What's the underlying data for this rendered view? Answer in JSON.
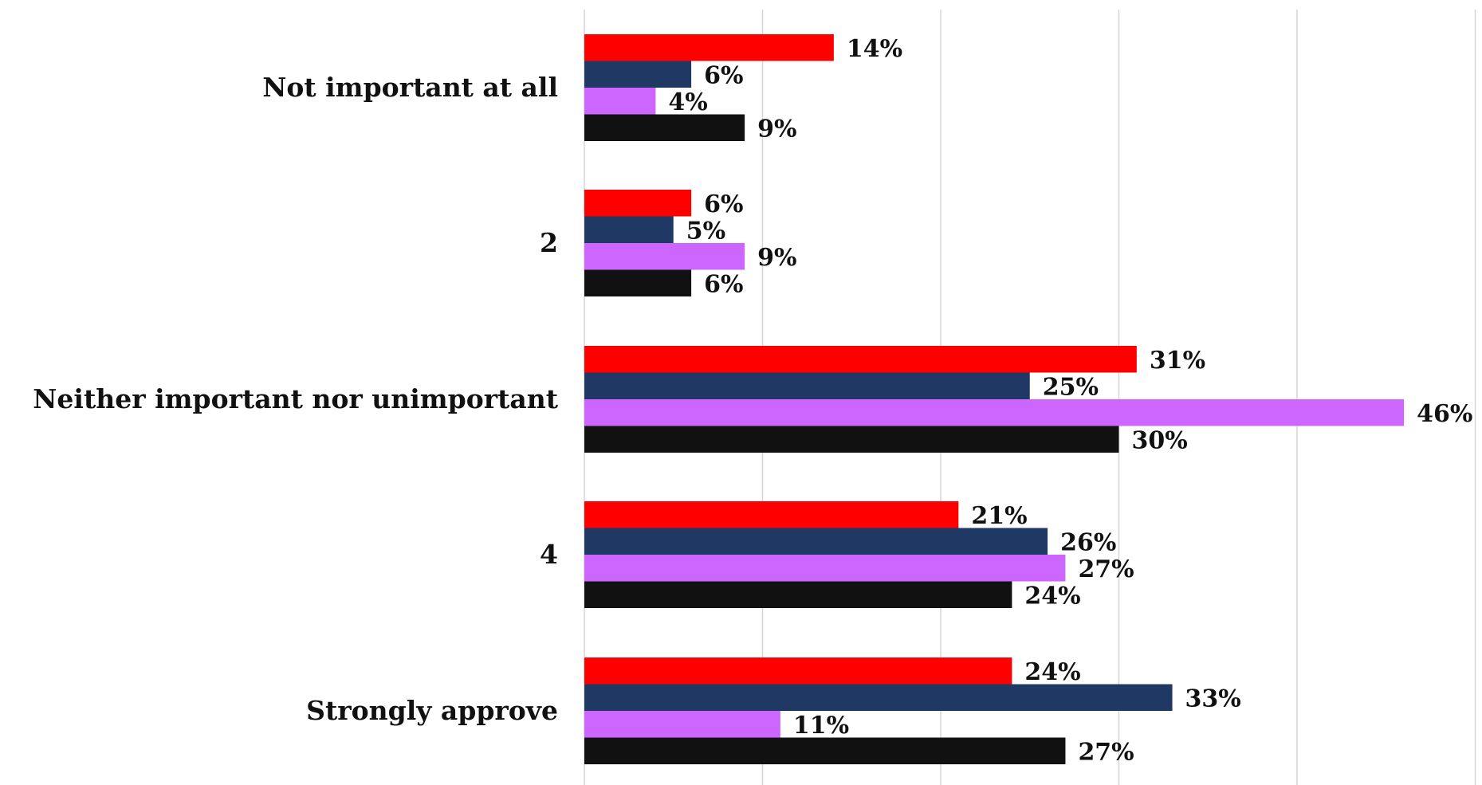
{
  "chart_data": {
    "type": "bar",
    "orientation": "horizontal",
    "categories": [
      "Not important at all",
      "2",
      "Neither important nor unimportant",
      "4",
      "Strongly approve"
    ],
    "series": [
      {
        "color": "#ff0000",
        "values": [
          14,
          6,
          31,
          21,
          24
        ],
        "labels": [
          "14%",
          "6%",
          "31%",
          "21%",
          "24%"
        ]
      },
      {
        "color": "#1f3864",
        "values": [
          6,
          5,
          25,
          26,
          33
        ],
        "labels": [
          "6%",
          "5%",
          "25%",
          "26%",
          "33%"
        ]
      },
      {
        "color": "#cc66ff",
        "values": [
          4,
          9,
          46,
          27,
          11
        ],
        "labels": [
          "4%",
          "9%",
          "46%",
          "27%",
          "11%"
        ]
      },
      {
        "color": "#111111",
        "values": [
          9,
          6,
          30,
          24,
          27
        ],
        "labels": [
          "9%",
          "6%",
          "30%",
          "24%",
          "27%"
        ]
      }
    ],
    "xlim": [
      0,
      50
    ],
    "gridlines": [
      0,
      10,
      20,
      30,
      40,
      50
    ],
    "grid": true,
    "legend": "none"
  }
}
